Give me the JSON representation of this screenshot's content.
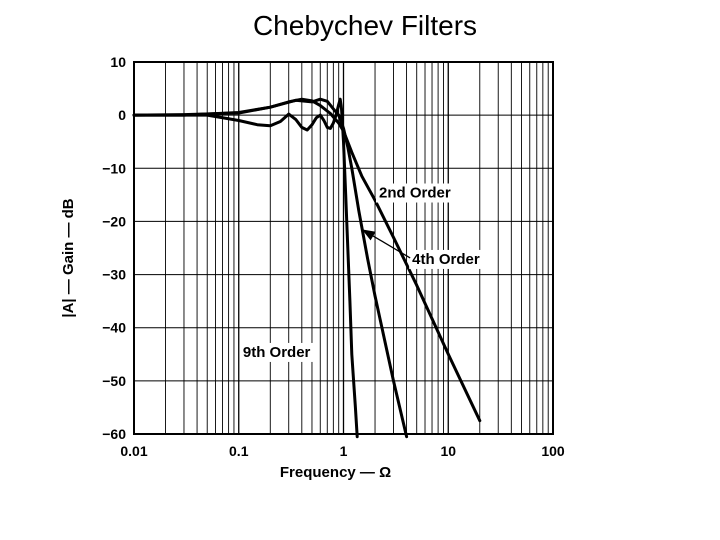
{
  "title": "Chebychev Filters",
  "chart_data": {
    "type": "line",
    "title": "Chebychev Filters",
    "xlabel": "Frequency — Ω",
    "ylabel": "|A| — Gain — dB",
    "xscale": "log",
    "xlim": [
      0.01,
      100
    ],
    "ylim": [
      -60,
      10
    ],
    "x_ticks": [
      {
        "value": 0.01,
        "label": "0.01"
      },
      {
        "value": 0.1,
        "label": "0.1"
      },
      {
        "value": 1,
        "label": "1"
      },
      {
        "value": 10,
        "label": "10"
      },
      {
        "value": 100,
        "label": "100"
      }
    ],
    "y_ticks": [
      {
        "value": 10,
        "label": "10"
      },
      {
        "value": 0,
        "label": "0"
      },
      {
        "value": -10,
        "label": "−10"
      },
      {
        "value": -20,
        "label": "−20"
      },
      {
        "value": -30,
        "label": "−30"
      },
      {
        "value": -40,
        "label": "−40"
      },
      {
        "value": -50,
        "label": "−50"
      },
      {
        "value": -60,
        "label": "−60"
      }
    ],
    "grid": true,
    "series": [
      {
        "name": "2nd Order",
        "points": [
          [
            0.01,
            0
          ],
          [
            0.03,
            0.1
          ],
          [
            0.1,
            0.4
          ],
          [
            0.2,
            1.5
          ],
          [
            0.3,
            2.5
          ],
          [
            0.4,
            3
          ],
          [
            0.5,
            2.7
          ],
          [
            0.6,
            1.8
          ],
          [
            0.75,
            0.3
          ],
          [
            0.9,
            -1.5
          ],
          [
            1,
            -3
          ],
          [
            1.2,
            -7
          ],
          [
            1.5,
            -11.5
          ],
          [
            2,
            -16
          ],
          [
            3,
            -23
          ],
          [
            5,
            -32
          ],
          [
            10,
            -45
          ],
          [
            20,
            -57.5
          ]
        ]
      },
      {
        "name": "4th Order",
        "points": [
          [
            0.01,
            0
          ],
          [
            0.03,
            0
          ],
          [
            0.1,
            0.5
          ],
          [
            0.2,
            1.5
          ],
          [
            0.35,
            2.8
          ],
          [
            0.5,
            2.5
          ],
          [
            0.6,
            3
          ],
          [
            0.7,
            2.6
          ],
          [
            0.8,
            1.2
          ],
          [
            0.9,
            0
          ],
          [
            1,
            -2.5
          ],
          [
            1.1,
            -6
          ],
          [
            1.2,
            -10
          ],
          [
            1.4,
            -18
          ],
          [
            1.7,
            -27
          ],
          [
            2,
            -34
          ],
          [
            3,
            -50
          ],
          [
            4,
            -60.5
          ]
        ]
      },
      {
        "name": "9th Order",
        "points": [
          [
            0.01,
            0
          ],
          [
            0.05,
            0
          ],
          [
            0.1,
            -1
          ],
          [
            0.15,
            -1.8
          ],
          [
            0.2,
            -2
          ],
          [
            0.25,
            -1.2
          ],
          [
            0.3,
            0.2
          ],
          [
            0.35,
            -0.8
          ],
          [
            0.4,
            -2.3
          ],
          [
            0.45,
            -2.8
          ],
          [
            0.5,
            -1.8
          ],
          [
            0.55,
            -0.5
          ],
          [
            0.6,
            0
          ],
          [
            0.65,
            -1
          ],
          [
            0.7,
            -2.3
          ],
          [
            0.75,
            -2.5
          ],
          [
            0.8,
            -1.5
          ],
          [
            0.85,
            0
          ],
          [
            0.9,
            2
          ],
          [
            0.93,
            3
          ],
          [
            0.96,
            1
          ],
          [
            1,
            -5
          ],
          [
            1.05,
            -15
          ],
          [
            1.1,
            -25
          ],
          [
            1.15,
            -35
          ],
          [
            1.2,
            -45
          ],
          [
            1.3,
            -55
          ],
          [
            1.35,
            -60.5
          ]
        ]
      }
    ],
    "annotations": [
      {
        "text": "2nd Order",
        "x": 4.8,
        "y": -15.5
      },
      {
        "text": "4th Order",
        "x": 9.5,
        "y": -28,
        "arrow_to": {
          "x": 1.5,
          "y": -21.5
        }
      },
      {
        "text": "9th Order",
        "x": 0.23,
        "y": -45.5
      }
    ]
  }
}
